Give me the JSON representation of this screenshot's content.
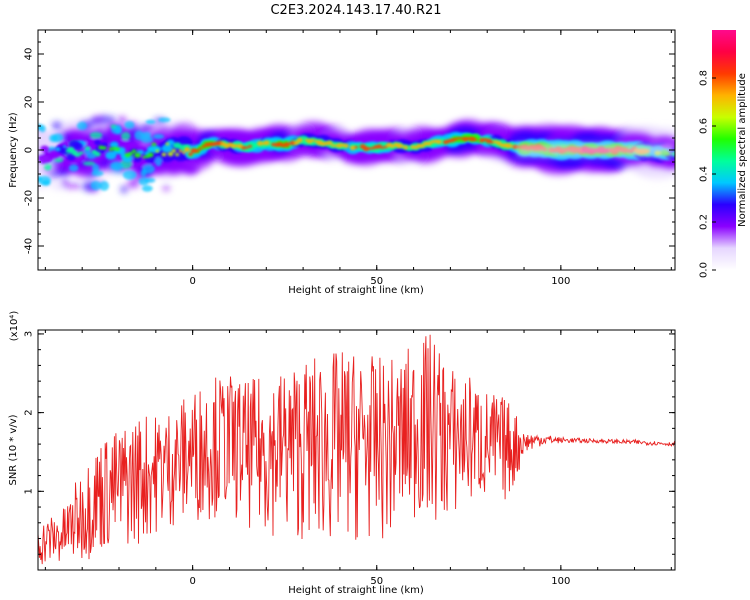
{
  "title": "C2E3.2024.143.17.40.R21",
  "colors": {
    "snr_line": "#e8201f",
    "axis": "#000000",
    "background": "#ffffff"
  },
  "chart_data": [
    {
      "type": "heatmap",
      "xlabel": "Height of straight line (km)",
      "ylabel": "Frequency (Hz)",
      "xlim": [
        -42,
        131
      ],
      "ylim": [
        -50,
        50
      ],
      "x_ticks": [
        0,
        50,
        100
      ],
      "y_ticks": [
        -40,
        -20,
        0,
        20,
        40
      ],
      "colorbar": {
        "label": "Normalized spectral amplitude",
        "range": [
          0.0,
          1.0
        ],
        "ticks": [
          "0.0",
          "0.2",
          "0.4",
          "0.6",
          "0.8"
        ],
        "colormap": [
          "#ffffff",
          "#e6d6ff",
          "#8a00ff",
          "#2a00ff",
          "#00c8ff",
          "#00ff9a",
          "#21ff00",
          "#c8ff00",
          "#ffb300",
          "#ff3a00",
          "#ff0044",
          "#ff0a8c"
        ]
      },
      "ridge": {
        "x": [
          -42,
          -35,
          -30,
          -25,
          -20,
          -15,
          -10,
          -5,
          0,
          5,
          10,
          15,
          20,
          25,
          30,
          35,
          40,
          45,
          50,
          55,
          60,
          65,
          70,
          75,
          80,
          85,
          90,
          100,
          110,
          120,
          131
        ],
        "freq": [
          -2,
          -1,
          0,
          1,
          0,
          -3,
          0,
          1,
          -1,
          3,
          2,
          1,
          3,
          2,
          4,
          3,
          2,
          1,
          1,
          2,
          1,
          3,
          4,
          5,
          4,
          2,
          1,
          0,
          0,
          0,
          -2
        ],
        "amplitude": [
          0.3,
          0.4,
          0.45,
          0.5,
          0.55,
          0.5,
          0.6,
          0.65,
          0.8,
          0.85,
          0.7,
          0.8,
          0.75,
          0.85,
          0.7,
          0.75,
          0.7,
          0.8,
          0.8,
          0.75,
          0.7,
          0.75,
          0.8,
          0.85,
          0.8,
          0.7,
          0.85,
          0.8,
          0.9,
          0.8,
          0.45
        ]
      }
    },
    {
      "type": "line",
      "xlabel": "Height of straight line (km)",
      "ylabel": "SNR (10 * v/v)",
      "y_multiplier": "(x10⁴)",
      "xlim": [
        -42,
        131
      ],
      "ylim": [
        0,
        3.05
      ],
      "x_ticks": [
        0,
        50,
        100
      ],
      "y_ticks": [
        1,
        2,
        3
      ],
      "series": [
        {
          "envelope_x": [
            -42,
            -35,
            -30,
            -25,
            -20,
            -15,
            -10,
            -5,
            0,
            5,
            10,
            15,
            20,
            25,
            30,
            35,
            40,
            45,
            50,
            55,
            60,
            65,
            70,
            75,
            80,
            85,
            88,
            90,
            95,
            100,
            110,
            120,
            131
          ],
          "envelope_low": [
            0.05,
            0.05,
            0.1,
            0.2,
            0.25,
            0.3,
            0.45,
            0.55,
            0.6,
            0.65,
            0.7,
            0.5,
            0.45,
            0.4,
            0.35,
            0.3,
            0.3,
            0.35,
            0.35,
            0.4,
            0.6,
            0.55,
            0.6,
            0.8,
            0.85,
            0.85,
            1.1,
            1.5,
            1.6,
            1.62,
            1.62,
            1.6,
            1.58
          ],
          "envelope_high": [
            0.6,
            0.8,
            1.3,
            1.7,
            1.8,
            2.0,
            2.0,
            2.1,
            2.3,
            2.5,
            2.5,
            2.4,
            2.5,
            2.6,
            2.7,
            2.75,
            2.8,
            2.8,
            2.7,
            2.7,
            2.9,
            3.05,
            2.6,
            2.5,
            2.3,
            2.2,
            2.0,
            1.75,
            1.72,
            1.68,
            1.66,
            1.65,
            1.62
          ]
        }
      ]
    }
  ]
}
